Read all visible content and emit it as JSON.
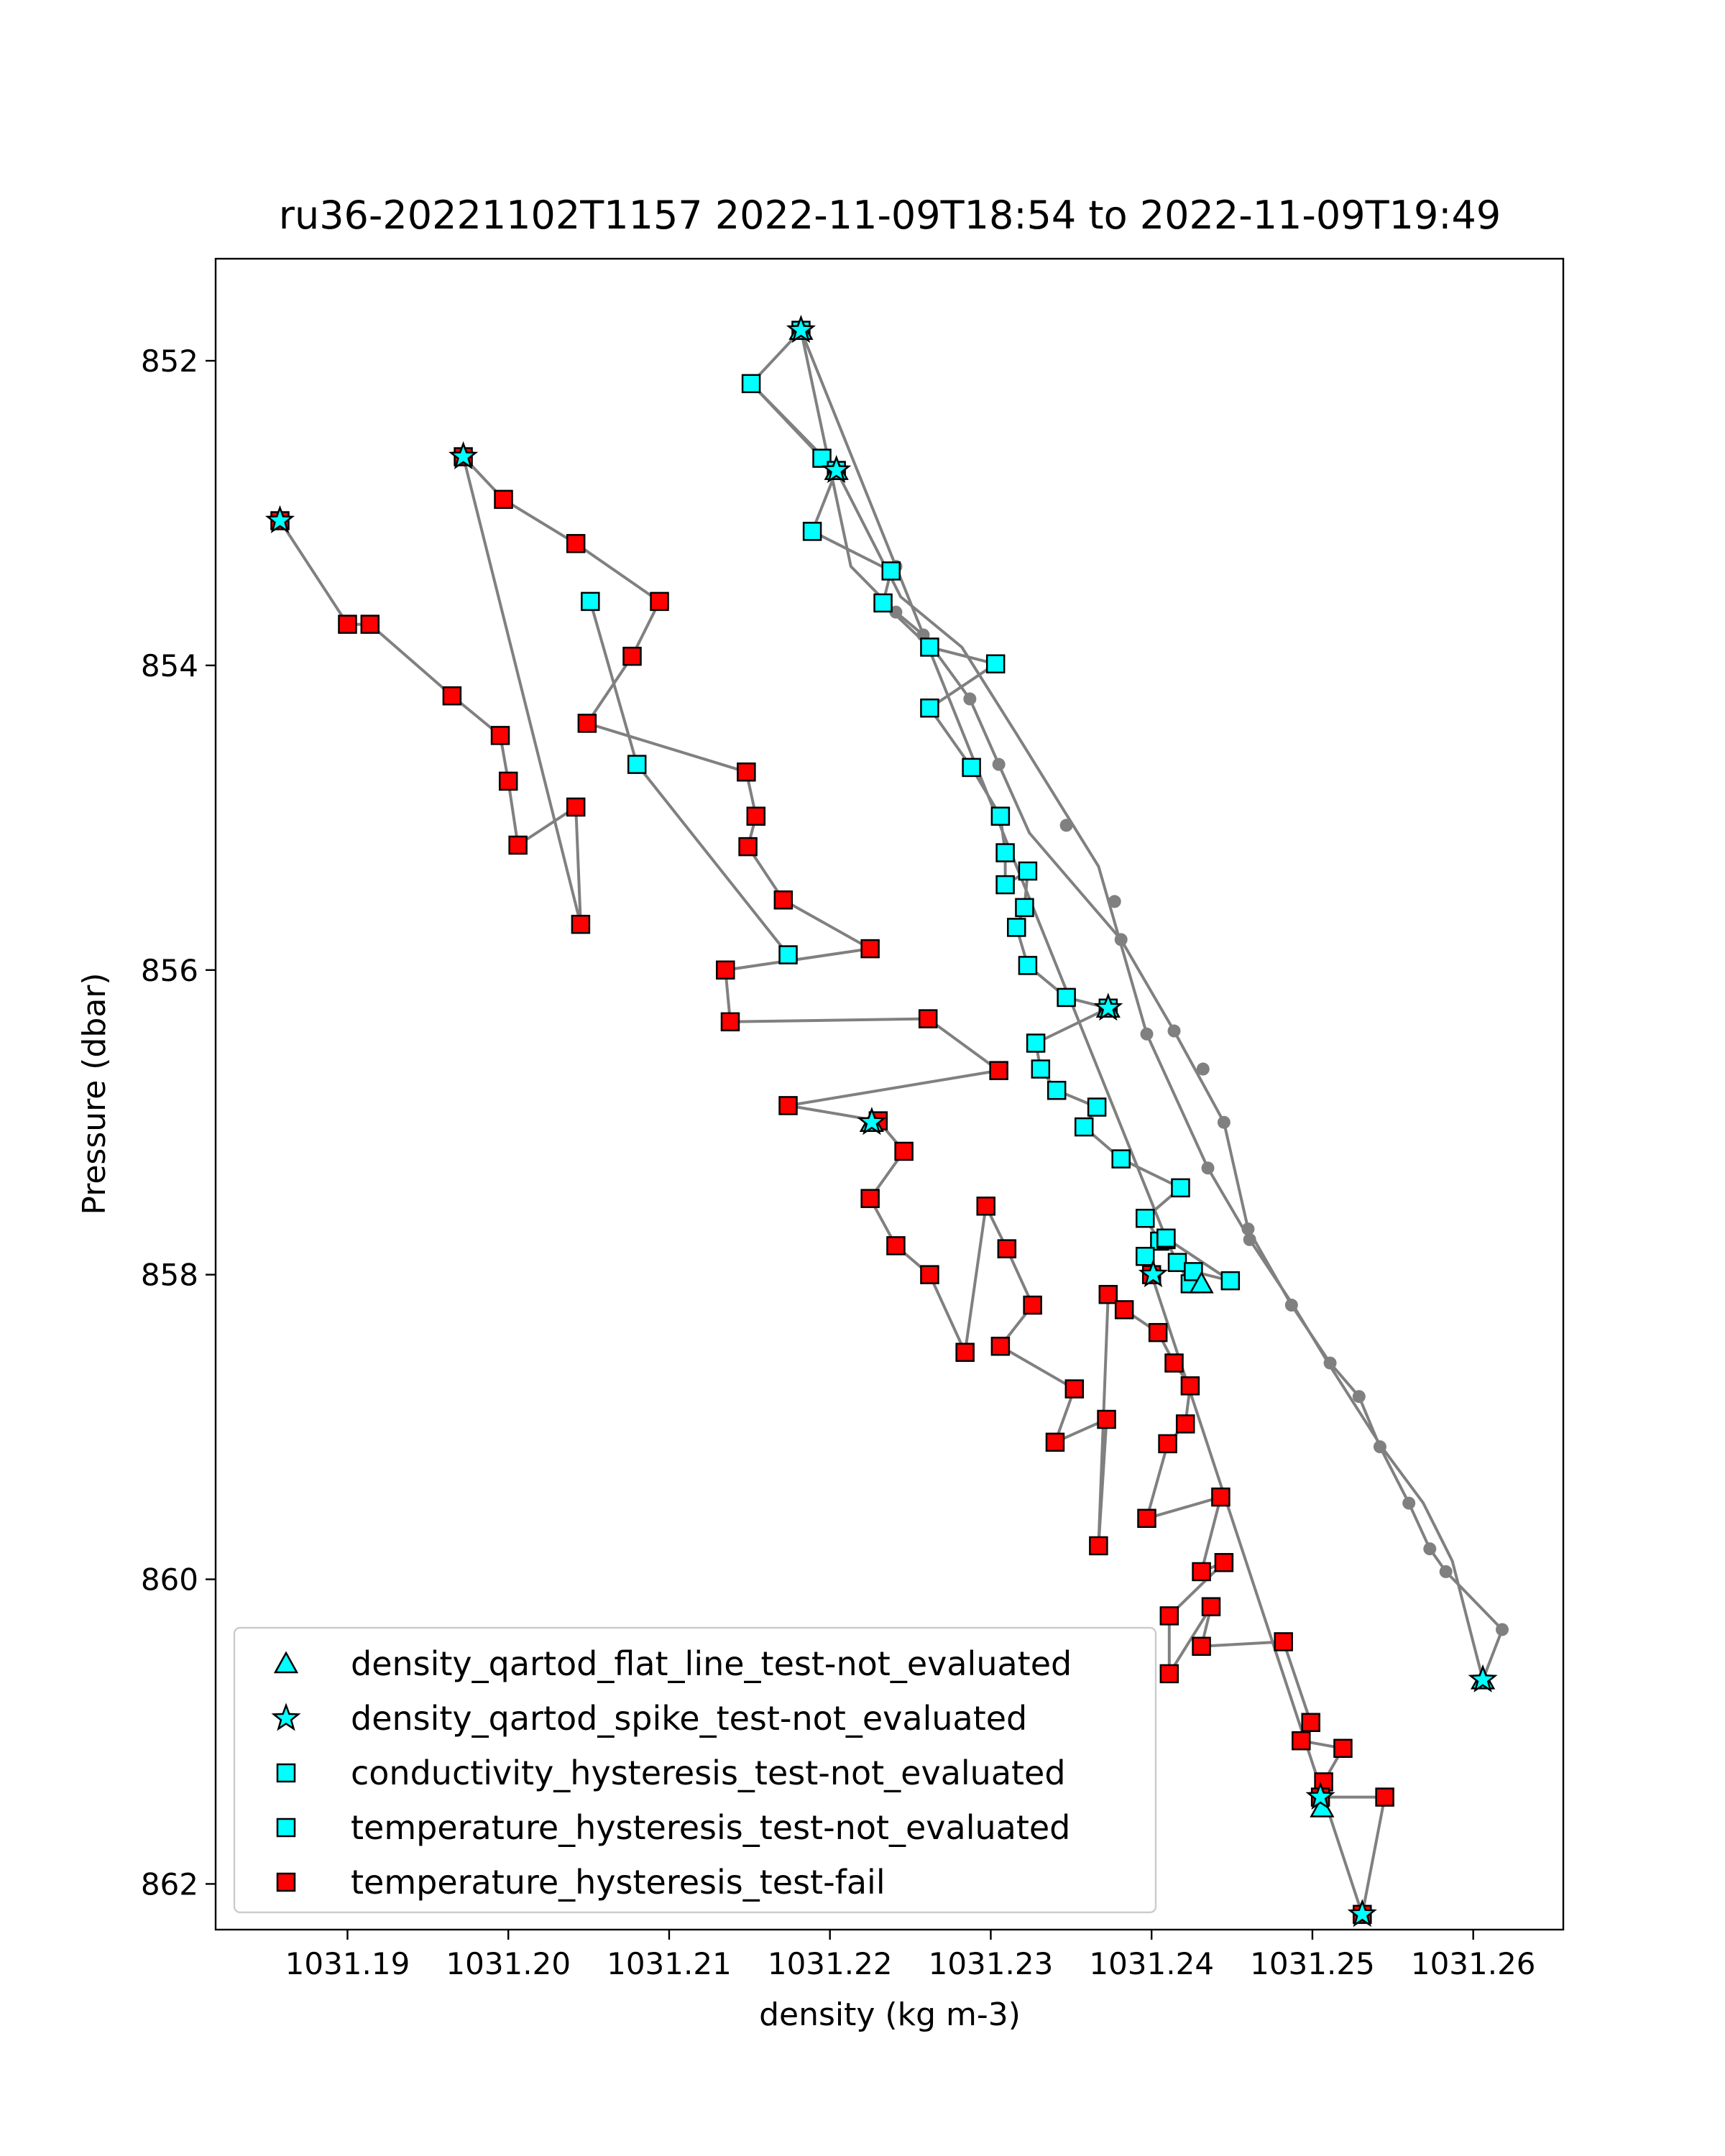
{
  "chart_data": {
    "type": "scatter",
    "title": "ru36-20221102T1157 2022-11-09T18:54 to 2022-11-09T19:49",
    "xlabel": "density (kg m-3)",
    "ylabel": "Pressure (dbar)",
    "xlim": [
      1031.1818,
      1031.2656
    ],
    "ylim": [
      862.3,
      851.33
    ],
    "y_inverted": true,
    "xticks": [
      1031.19,
      1031.2,
      1031.21,
      1031.22,
      1031.23,
      1031.24,
      1031.25,
      1031.26
    ],
    "xtick_labels": [
      "1031.19",
      "1031.20",
      "1031.21",
      "1031.22",
      "1031.23",
      "1031.24",
      "1031.25",
      "1031.26"
    ],
    "yticks": [
      852,
      854,
      856,
      858,
      860,
      862
    ],
    "ytick_labels": [
      "852",
      "854",
      "856",
      "858",
      "860",
      "862"
    ],
    "grid": false,
    "legend_position": "lower-left",
    "colors": {
      "line": "#808080",
      "cyan": "#00ffff",
      "red": "#ff0000",
      "edge": "#000000"
    },
    "profile_line": [
      [
        1031.2606,
        860.66
      ],
      [
        1031.2618,
        860.33
      ],
      [
        1031.2583,
        859.95
      ],
      [
        1031.2573,
        859.8
      ],
      [
        1031.256,
        859.5
      ],
      [
        1031.2542,
        859.13
      ],
      [
        1031.2529,
        858.8
      ],
      [
        1031.2511,
        858.58
      ],
      [
        1031.2487,
        858.2
      ],
      [
        1031.246,
        857.7
      ],
      [
        1031.2445,
        857.0
      ],
      [
        1031.2414,
        856.4
      ],
      [
        1031.2381,
        855.8
      ],
      [
        1031.2324,
        855.1
      ],
      [
        1031.2305,
        854.65
      ],
      [
        1031.2287,
        854.22
      ],
      [
        1031.2258,
        853.8
      ],
      [
        1031.2241,
        853.65
      ],
      [
        1031.2213,
        853.35
      ],
      [
        1031.2182,
        851.8
      ],
      [
        1031.2151,
        852.15
      ],
      [
        1031.2204,
        852.72
      ],
      [
        1031.2244,
        853.55
      ],
      [
        1031.2282,
        853.88
      ],
      [
        1031.2316,
        854.45
      ],
      [
        1031.2367,
        855.32
      ],
      [
        1031.2397,
        856.42
      ],
      [
        1031.2435,
        857.3
      ],
      [
        1031.2461,
        857.77
      ],
      [
        1031.2488,
        858.2
      ],
      [
        1031.2511,
        858.6
      ],
      [
        1031.2543,
        859.13
      ],
      [
        1031.2569,
        859.5
      ],
      [
        1031.2587,
        859.88
      ],
      [
        1031.2606,
        860.66
      ]
    ],
    "profile_dots": [
      [
        1031.2618,
        860.33
      ],
      [
        1031.2583,
        859.95
      ],
      [
        1031.2573,
        859.8
      ],
      [
        1031.256,
        859.5
      ],
      [
        1031.2542,
        859.13
      ],
      [
        1031.2529,
        858.8
      ],
      [
        1031.2511,
        858.58
      ],
      [
        1031.2487,
        858.2
      ],
      [
        1031.246,
        857.7
      ],
      [
        1031.2445,
        857.0
      ],
      [
        1031.2432,
        856.65
      ],
      [
        1031.2414,
        856.4
      ],
      [
        1031.2397,
        856.42
      ],
      [
        1031.2381,
        855.8
      ],
      [
        1031.2377,
        855.55
      ],
      [
        1031.2347,
        855.05
      ],
      [
        1031.2305,
        854.65
      ],
      [
        1031.2287,
        854.22
      ],
      [
        1031.2258,
        853.8
      ],
      [
        1031.2241,
        853.65
      ],
      [
        1031.2241,
        853.35
      ],
      [
        1031.2461,
        857.77
      ],
      [
        1031.2435,
        857.3
      ]
    ],
    "series": [
      {
        "name": "density_qartod_flat_line_test-not_evaluated",
        "marker": "triangle",
        "color": "#00ffff",
        "points": [
          [
            1031.2182,
            851.8
          ],
          [
            1031.2204,
            852.72
          ],
          [
            1031.2373,
            856.25
          ],
          [
            1031.2226,
            857.0
          ],
          [
            1031.2431,
            858.06
          ],
          [
            1031.2606,
            860.66
          ],
          [
            1031.2506,
            861.5
          ]
        ]
      },
      {
        "name": "density_qartod_spike_test-not_evaluated",
        "marker": "star",
        "color": "#00ffff",
        "points": [
          [
            1031.1858,
            853.05
          ],
          [
            1031.1972,
            852.63
          ],
          [
            1031.2182,
            851.8
          ],
          [
            1031.2204,
            852.72
          ],
          [
            1031.2373,
            856.25
          ],
          [
            1031.2226,
            857.0
          ],
          [
            1031.2401,
            858.0
          ],
          [
            1031.2606,
            860.66
          ],
          [
            1031.2505,
            861.43
          ],
          [
            1031.2531,
            862.2
          ]
        ]
      },
      {
        "name": "conductivity_hysteresis_test-not_evaluated",
        "marker": "square",
        "color": "#00ffff",
        "points": [
          [
            1031.2151,
            852.15
          ],
          [
            1031.2195,
            852.64
          ],
          [
            1031.2204,
            852.72
          ],
          [
            1031.2189,
            853.12
          ],
          [
            1031.2238,
            853.38
          ],
          [
            1031.2233,
            853.59
          ],
          [
            1031.2262,
            853.88
          ],
          [
            1031.2303,
            853.99
          ],
          [
            1031.2262,
            854.28
          ],
          [
            1031.2288,
            854.67
          ],
          [
            1031.2306,
            854.99
          ],
          [
            1031.2309,
            855.23
          ],
          [
            1031.2309,
            855.44
          ],
          [
            1031.2323,
            855.35
          ],
          [
            1031.2321,
            855.59
          ],
          [
            1031.2316,
            855.72
          ],
          [
            1031.2323,
            855.97
          ],
          [
            1031.2347,
            856.18
          ],
          [
            1031.2373,
            856.25
          ],
          [
            1031.2328,
            856.48
          ],
          [
            1031.2331,
            856.65
          ],
          [
            1031.2341,
            856.79
          ],
          [
            1031.2366,
            856.9
          ],
          [
            1031.2358,
            857.03
          ],
          [
            1031.2381,
            857.24
          ],
          [
            1031.2418,
            857.43
          ],
          [
            1031.2396,
            857.63
          ],
          [
            1031.2405,
            857.78
          ],
          [
            1031.2396,
            857.88
          ],
          [
            1031.2409,
            857.77
          ],
          [
            1031.2416,
            857.92
          ],
          [
            1031.2424,
            858.06
          ],
          [
            1031.2426,
            857.98
          ],
          [
            1031.2449,
            858.04
          ],
          [
            1031.2409,
            857.76
          ],
          [
            1031.2182,
            851.8
          ]
        ]
      },
      {
        "name": "temperature_hysteresis_test-not_evaluated",
        "marker": "square",
        "color": "#00ffff",
        "points": [
          [
            1031.2051,
            853.58
          ],
          [
            1031.208,
            854.65
          ],
          [
            1031.2174,
            855.9
          ]
        ]
      },
      {
        "name": "temperature_hysteresis_test-fail",
        "marker": "square",
        "color": "#ff0000",
        "points": [
          [
            1031.1858,
            853.05
          ],
          [
            1031.19,
            853.73
          ],
          [
            1031.1914,
            853.73
          ],
          [
            1031.1965,
            854.2
          ],
          [
            1031.1995,
            854.46
          ],
          [
            1031.2,
            854.76
          ],
          [
            1031.2006,
            855.18
          ],
          [
            1031.2042,
            854.93
          ],
          [
            1031.2045,
            855.7
          ],
          [
            1031.1972,
            852.63
          ],
          [
            1031.1997,
            852.91
          ],
          [
            1031.2042,
            853.2
          ],
          [
            1031.2094,
            853.58
          ],
          [
            1031.2077,
            853.94
          ],
          [
            1031.2049,
            854.38
          ],
          [
            1031.2148,
            854.7
          ],
          [
            1031.2154,
            854.99
          ],
          [
            1031.2149,
            855.19
          ],
          [
            1031.2171,
            855.54
          ],
          [
            1031.2225,
            855.86
          ],
          [
            1031.2135,
            856.0
          ],
          [
            1031.2138,
            856.34
          ],
          [
            1031.2261,
            856.32
          ],
          [
            1031.2305,
            856.66
          ],
          [
            1031.2174,
            856.89
          ],
          [
            1031.223,
            856.99
          ],
          [
            1031.2246,
            857.19
          ],
          [
            1031.2225,
            857.5
          ],
          [
            1031.2241,
            857.81
          ],
          [
            1031.2262,
            858.0
          ],
          [
            1031.2284,
            858.51
          ],
          [
            1031.2297,
            857.55
          ],
          [
            1031.231,
            857.83
          ],
          [
            1031.2326,
            858.2
          ],
          [
            1031.2306,
            858.47
          ],
          [
            1031.2352,
            858.75
          ],
          [
            1031.234,
            859.1
          ],
          [
            1031.2372,
            858.95
          ],
          [
            1031.2367,
            859.78
          ],
          [
            1031.2373,
            858.13
          ],
          [
            1031.2383,
            858.23
          ],
          [
            1031.2404,
            858.38
          ],
          [
            1031.2414,
            858.58
          ],
          [
            1031.2424,
            858.73
          ],
          [
            1031.2421,
            858.98
          ],
          [
            1031.241,
            859.11
          ],
          [
            1031.2397,
            859.6
          ],
          [
            1031.2443,
            859.46
          ],
          [
            1031.2431,
            859.95
          ],
          [
            1031.2445,
            859.89
          ],
          [
            1031.2411,
            860.24
          ],
          [
            1031.2411,
            860.62
          ],
          [
            1031.2437,
            860.18
          ],
          [
            1031.2431,
            860.44
          ],
          [
            1031.2482,
            860.41
          ],
          [
            1031.2499,
            860.94
          ],
          [
            1031.2493,
            861.06
          ],
          [
            1031.2519,
            861.11
          ],
          [
            1031.2507,
            861.33
          ],
          [
            1031.2505,
            861.43
          ],
          [
            1031.2545,
            861.43
          ],
          [
            1031.2531,
            862.2
          ],
          [
            1031.24,
            858.0
          ]
        ]
      }
    ]
  }
}
